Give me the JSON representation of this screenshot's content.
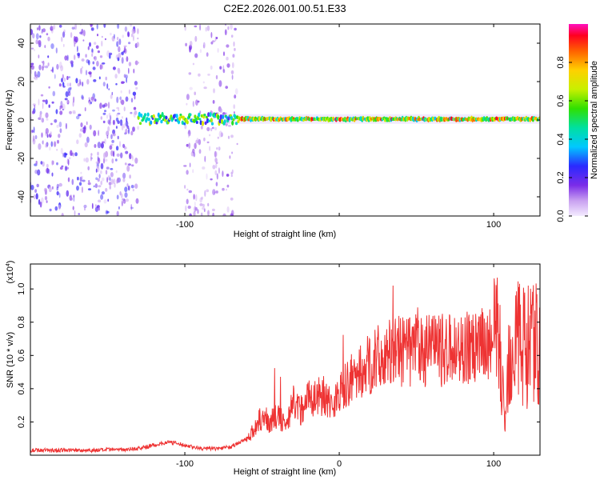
{
  "title": "C2E2.2026.001.00.51.E33",
  "chart_data": [
    {
      "type": "heatmap",
      "xlabel": "Height of straight line (km)",
      "ylabel": "Frequency (Hz)",
      "xlim": [
        -200,
        130
      ],
      "ylim": [
        -50,
        50
      ],
      "xticks": [
        -100,
        0,
        100
      ],
      "xtick_labels": [
        "-100",
        "",
        "100"
      ],
      "yticks": [
        40,
        20,
        0,
        -20,
        -40
      ],
      "ytick_labels": [
        "40",
        "20",
        "0",
        "-20",
        "-40"
      ],
      "colorbar": {
        "label": "Normalized spectral amplitude",
        "range": [
          0,
          1
        ],
        "ticks": [
          0.0,
          0.2,
          0.4,
          0.6,
          0.8
        ],
        "tick_labels": [
          "0.0",
          "0.2",
          "0.4",
          "0.6",
          "0.8"
        ],
        "colormap": "rainbow (white, purple, blue, cyan, green, yellow, red, magenta)"
      },
      "features": [
        {
          "name": "broadband noise",
          "x_range": [
            -200,
            -130
          ],
          "freq_range": [
            -50,
            50
          ],
          "amplitude": 0.15
        },
        {
          "name": "broadband noise",
          "x_range": [
            -100,
            -66
          ],
          "freq_range": [
            -50,
            50
          ],
          "amplitude": 0.1
        },
        {
          "name": "dominant tone",
          "x_range": [
            -130,
            130
          ],
          "freq_center": 0.5,
          "amplitude": 0.6
        }
      ]
    },
    {
      "type": "line",
      "xlabel": "Height of straight line (km)",
      "ylabel": "SNR (10 * v/v)",
      "y_scale_label": "(x10",
      "y_scale_exp": "4",
      "y_scale_close": ")",
      "xlim": [
        -200,
        130
      ],
      "ylim": [
        0,
        1.15
      ],
      "xticks": [
        -100,
        0,
        100
      ],
      "xtick_labels": [
        "-100",
        "0",
        "100"
      ],
      "yticks": [
        0.2,
        0.4,
        0.6,
        0.8,
        1.0
      ],
      "ytick_labels": [
        "0.2",
        "0.4",
        "0.6",
        "0.8",
        "1.0"
      ],
      "color": "#ee3333",
      "series": [
        {
          "x": [
            -200,
            -180,
            -160,
            -140,
            -130,
            -120,
            -110,
            -100,
            -90,
            -80,
            -70,
            -60,
            -55,
            -50,
            -45,
            -40,
            -35,
            -30,
            -25,
            -20,
            -15,
            -10,
            -5,
            0,
            5,
            10,
            15,
            20,
            25,
            30,
            40,
            50,
            60,
            70,
            80,
            90,
            100,
            103,
            105,
            107,
            110,
            115,
            120,
            125,
            130
          ],
          "y": [
            0.03,
            0.03,
            0.03,
            0.035,
            0.04,
            0.06,
            0.08,
            0.06,
            0.04,
            0.04,
            0.05,
            0.1,
            0.16,
            0.23,
            0.2,
            0.24,
            0.18,
            0.32,
            0.27,
            0.36,
            0.34,
            0.37,
            0.3,
            0.38,
            0.42,
            0.48,
            0.5,
            0.55,
            0.58,
            0.6,
            0.62,
            0.63,
            0.63,
            0.63,
            0.64,
            0.65,
            0.68,
            0.72,
            0.55,
            0.15,
            0.62,
            0.75,
            0.65,
            0.68,
            0.65
          ]
        }
      ]
    }
  ]
}
